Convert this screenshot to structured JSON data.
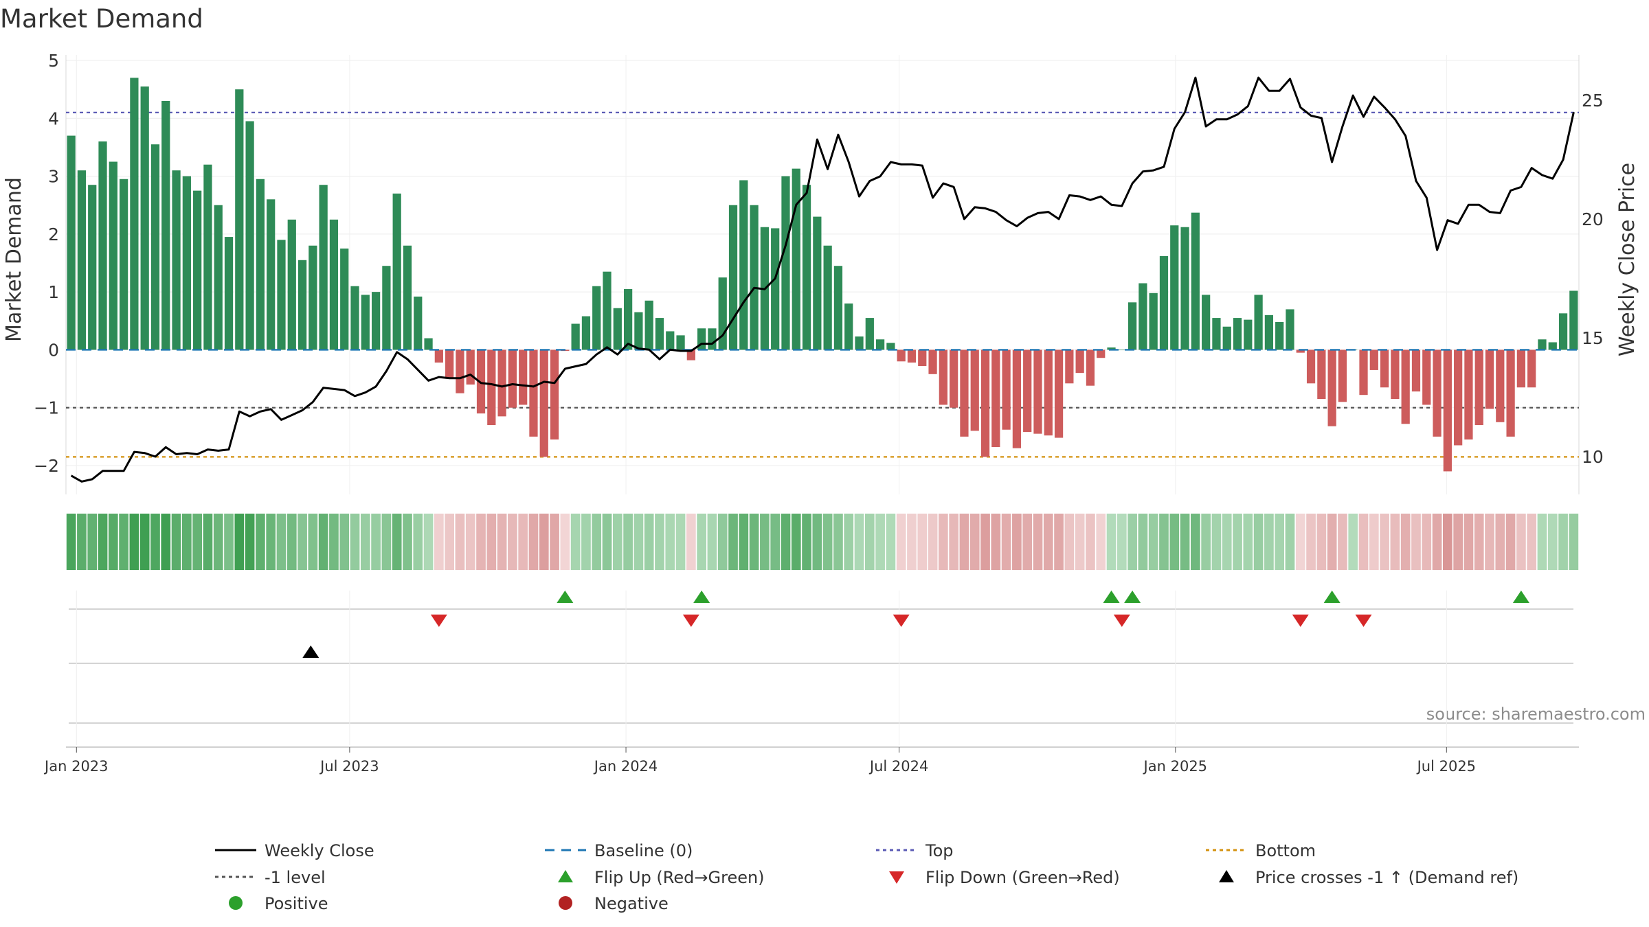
{
  "chart_data": {
    "type": "bar",
    "title": "Market Demand",
    "ylabel": "Market Demand",
    "y2label": "Weekly Close Price",
    "source": "source: sharemaestro.com",
    "ylim": [
      -2.5,
      5.0
    ],
    "y2lim": [
      8.4,
      27.5
    ],
    "yticks": [
      {
        "v": 5,
        "label": "5"
      },
      {
        "v": 4,
        "label": "4"
      },
      {
        "v": 3,
        "label": "3"
      },
      {
        "v": 2,
        "label": "2"
      },
      {
        "v": 1,
        "label": "1"
      },
      {
        "v": 0,
        "label": "0"
      },
      {
        "v": -1,
        "label": "−1"
      },
      {
        "v": -2,
        "label": "−2"
      }
    ],
    "y2ticks": [
      {
        "v": 25,
        "label": "25"
      },
      {
        "v": 20,
        "label": "20"
      },
      {
        "v": 15,
        "label": "15"
      },
      {
        "v": 10,
        "label": "10"
      }
    ],
    "x_start": "2022-12-26",
    "x_end": "2025-09-08",
    "xticks": [
      {
        "week": 1,
        "label": "Jan 2023"
      },
      {
        "week": 27,
        "label": "Jul 2023"
      },
      {
        "week": 53.3,
        "label": "Jan 2024"
      },
      {
        "week": 79.3,
        "label": "Jul 2024"
      },
      {
        "week": 105.6,
        "label": "Jan 2025"
      },
      {
        "week": 131.4,
        "label": "Jul 2025"
      }
    ],
    "reference_lines": {
      "top": 4.1,
      "bottom": -1.85,
      "minus_one": -1.0,
      "baseline": 0
    },
    "series": [
      {
        "name": "Market Demand",
        "values": [
          3.7,
          3.1,
          2.85,
          3.6,
          3.25,
          2.95,
          4.7,
          4.55,
          3.55,
          4.3,
          3.1,
          3.0,
          2.75,
          3.2,
          2.5,
          1.95,
          4.5,
          3.95,
          2.95,
          2.6,
          1.9,
          2.25,
          1.55,
          1.8,
          2.85,
          2.25,
          1.75,
          1.1,
          0.95,
          1.0,
          1.45,
          2.7,
          1.8,
          0.92,
          0.2,
          -0.22,
          -0.5,
          -0.75,
          -0.6,
          -1.1,
          -1.3,
          -1.15,
          -1.0,
          -0.95,
          -1.5,
          -1.85,
          -1.55,
          -0.02,
          0.45,
          0.58,
          1.1,
          1.35,
          0.72,
          1.05,
          0.65,
          0.85,
          0.55,
          0.32,
          0.25,
          -0.18,
          0.37,
          0.37,
          1.25,
          2.5,
          2.93,
          2.5,
          2.12,
          2.1,
          3.0,
          3.13,
          2.85,
          2.3,
          1.8,
          1.45,
          0.8,
          0.23,
          0.55,
          0.18,
          0.12,
          -0.2,
          -0.22,
          -0.28,
          -0.42,
          -0.95,
          -1.0,
          -1.5,
          -1.4,
          -1.85,
          -1.68,
          -1.38,
          -1.7,
          -1.42,
          -1.45,
          -1.48,
          -1.52,
          -0.58,
          -0.4,
          -0.62,
          -0.14,
          0.04,
          0.0,
          0.82,
          1.15,
          0.98,
          1.62,
          2.15,
          2.12,
          2.37,
          0.95,
          0.55,
          0.4,
          0.55,
          0.52,
          0.95,
          0.6,
          0.48,
          0.7,
          -0.05,
          -0.58,
          -0.85,
          -1.32,
          -0.9,
          0.0,
          -0.78,
          -0.35,
          -0.65,
          -0.85,
          -1.28,
          -0.72,
          -0.95,
          -1.5,
          -2.1,
          -1.65,
          -1.55,
          -1.3,
          -1.02,
          -1.25,
          -1.5,
          -0.65,
          -0.65,
          0.18,
          0.13,
          0.63,
          1.02
        ]
      },
      {
        "name": "Weekly Close",
        "values": [
          9.2,
          8.95,
          9.05,
          9.4,
          9.4,
          9.4,
          10.2,
          10.15,
          10.0,
          10.4,
          10.1,
          10.15,
          10.1,
          10.3,
          10.25,
          10.3,
          11.9,
          11.7,
          11.9,
          12.0,
          11.55,
          11.75,
          11.95,
          12.3,
          12.9,
          12.85,
          12.8,
          12.55,
          12.7,
          12.95,
          13.6,
          14.4,
          14.1,
          13.65,
          13.2,
          13.35,
          13.3,
          13.3,
          13.45,
          13.1,
          13.05,
          12.95,
          13.05,
          13.0,
          12.95,
          13.15,
          13.1,
          13.7,
          13.8,
          13.9,
          14.3,
          14.6,
          14.3,
          14.75,
          14.55,
          14.5,
          14.1,
          14.5,
          14.45,
          14.45,
          14.75,
          14.75,
          15.1,
          15.8,
          16.5,
          17.1,
          17.05,
          17.5,
          18.9,
          20.6,
          21.1,
          23.35,
          22.1,
          23.55,
          22.4,
          20.95,
          21.6,
          21.8,
          22.4,
          22.3,
          22.3,
          22.25,
          20.9,
          21.5,
          21.35,
          20.0,
          20.5,
          20.45,
          20.3,
          19.95,
          19.7,
          20.05,
          20.25,
          20.3,
          20.0,
          21.0,
          20.95,
          20.8,
          20.95,
          20.6,
          20.55,
          21.5,
          22.0,
          22.05,
          22.2,
          23.8,
          24.5,
          25.95,
          23.9,
          24.2,
          24.2,
          24.4,
          24.75,
          25.95,
          25.4,
          25.4,
          25.9,
          24.7,
          24.35,
          24.25,
          22.4,
          23.9,
          25.2,
          24.3,
          25.15,
          24.7,
          24.2,
          23.5,
          21.6,
          20.9,
          18.7,
          19.95,
          19.8,
          20.6,
          20.6,
          20.3,
          20.25,
          21.2,
          21.35,
          22.15,
          21.85,
          21.7,
          22.5,
          24.5
        ]
      }
    ],
    "signals": {
      "flip_up_weeks": [
        47.5,
        60.5,
        99.5,
        101.5,
        120.5,
        138.5
      ],
      "flip_down_weeks": [
        35.5,
        59.5,
        79.5,
        100.5,
        117.5,
        123.5
      ],
      "price_cross_weeks": [
        23.3
      ]
    },
    "legend": [
      {
        "label": "Weekly Close",
        "symbol": "line",
        "color": "#000000"
      },
      {
        "label": "Baseline (0)",
        "symbol": "dash",
        "color": "#1f77b4"
      },
      {
        "label": "Top",
        "symbol": "dot",
        "color": "#5b5bb5"
      },
      {
        "label": "Bottom",
        "symbol": "dot",
        "color": "#d4920f"
      },
      {
        "label": "-1 level",
        "symbol": "dot",
        "color": "#555555"
      },
      {
        "label": "Flip Up (Red→Green)",
        "symbol": "triangle-up",
        "color": "#2ca02c"
      },
      {
        "label": "Flip Down (Green→Red)",
        "symbol": "triangle-down",
        "color": "#d62728"
      },
      {
        "label": "Price crosses -1 ↑ (Demand ref)",
        "symbol": "triangle-up",
        "color": "#000000"
      },
      {
        "label": "Positive",
        "symbol": "circle",
        "color": "#2ca02c"
      },
      {
        "label": "Negative",
        "symbol": "circle",
        "color": "#b22222"
      }
    ],
    "colors": {
      "positive_bar": "#2e8b57",
      "negative_bar": "#cd5c5c",
      "line": "#000000",
      "baseline": "#1f77b4",
      "top": "#5b5bb5",
      "bottom": "#d4920f",
      "minus_one": "#555555",
      "flip_up": "#2ca02c",
      "flip_down": "#d62728"
    }
  }
}
